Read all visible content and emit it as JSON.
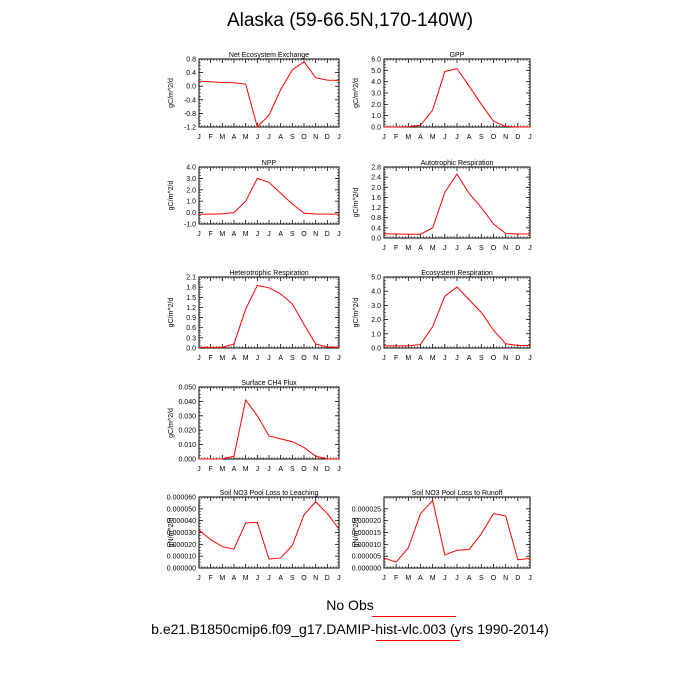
{
  "page_title": "Alaska (59-66.5N,170-140W)",
  "legend": {
    "obs_label": "No Obs",
    "case_label": "b.e21.B1850cmip6.f09_g17.DAMIP-hist-vlc.003 (yrs 1990-2014)",
    "line_color": "#ff0000"
  },
  "chart_data": [
    {
      "type": "line",
      "title": "Net Ecosystem Exchange",
      "ylabel": "gC/m^2/d",
      "x": [
        "J",
        "F",
        "M",
        "A",
        "M",
        "J",
        "J",
        "A",
        "S",
        "O",
        "N",
        "D",
        "J"
      ],
      "ylim": [
        -1.2,
        0.8
      ],
      "yticks": [
        "0.8",
        "0.4",
        "0.0",
        "-0.4",
        "-0.8",
        "-1.2"
      ],
      "series": [
        {
          "color": "#ff0000",
          "values": [
            0.15,
            0.13,
            0.11,
            0.1,
            0.06,
            -1.2,
            -0.85,
            -0.1,
            0.48,
            0.72,
            0.25,
            0.18,
            0.17
          ]
        }
      ]
    },
    {
      "type": "line",
      "title": "GPP",
      "ylabel": "gC/m^2/d",
      "x": [
        "J",
        "F",
        "M",
        "A",
        "M",
        "J",
        "J",
        "A",
        "S",
        "O",
        "N",
        "D",
        "J"
      ],
      "ylim": [
        0,
        6
      ],
      "yticks": [
        "6.0",
        "5.0",
        "4.0",
        "3.0",
        "2.0",
        "1.0",
        "0.0"
      ],
      "series": [
        {
          "color": "#ff0000",
          "values": [
            0.0,
            0.0,
            0.03,
            0.15,
            1.5,
            4.9,
            5.15,
            3.6,
            2.0,
            0.5,
            0.05,
            0.0,
            0.0
          ]
        }
      ]
    },
    {
      "type": "line",
      "title": "NPP",
      "ylabel": "gC/m^2/d",
      "x": [
        "J",
        "F",
        "M",
        "A",
        "M",
        "J",
        "J",
        "A",
        "S",
        "O",
        "N",
        "D",
        "J"
      ],
      "ylim": [
        -1,
        4
      ],
      "yticks": [
        "4.0",
        "3.0",
        "2.0",
        "1.0",
        "0.0",
        "-1.0"
      ],
      "series": [
        {
          "color": "#ff0000",
          "values": [
            -0.15,
            -0.13,
            -0.1,
            0.0,
            1.0,
            3.0,
            2.65,
            1.7,
            0.75,
            -0.05,
            -0.12,
            -0.13,
            -0.13
          ]
        }
      ]
    },
    {
      "type": "line",
      "title": "Autotrophic Respiration",
      "ylabel": "gC/m^2/d",
      "x": [
        "J",
        "F",
        "M",
        "A",
        "M",
        "J",
        "J",
        "A",
        "S",
        "O",
        "N",
        "D",
        "J"
      ],
      "ylim": [
        0,
        2.8
      ],
      "yticks": [
        "2.8",
        "2.4",
        "2.0",
        "1.6",
        "1.2",
        "0.8",
        "0.4",
        "0.0"
      ],
      "series": [
        {
          "color": "#ff0000",
          "values": [
            0.17,
            0.16,
            0.15,
            0.15,
            0.4,
            1.8,
            2.52,
            1.75,
            1.2,
            0.55,
            0.18,
            0.16,
            0.16
          ]
        }
      ]
    },
    {
      "type": "line",
      "title": "Heterotrophic Respiration",
      "ylabel": "gC/m^2/d",
      "x": [
        "J",
        "F",
        "M",
        "A",
        "M",
        "J",
        "J",
        "A",
        "S",
        "O",
        "N",
        "D",
        "J"
      ],
      "ylim": [
        0,
        2.1
      ],
      "yticks": [
        "2.1",
        "1.8",
        "1.5",
        "1.2",
        "0.9",
        "0.6",
        "0.3",
        "0.0"
      ],
      "series": [
        {
          "color": "#ff0000",
          "values": [
            0.02,
            0.02,
            0.02,
            0.12,
            1.15,
            1.85,
            1.78,
            1.6,
            1.3,
            0.7,
            0.12,
            0.03,
            0.02
          ]
        }
      ]
    },
    {
      "type": "line",
      "title": "Ecosystem Respiration",
      "ylabel": "gC/m^2/d",
      "x": [
        "J",
        "F",
        "M",
        "A",
        "M",
        "J",
        "J",
        "A",
        "S",
        "O",
        "N",
        "D",
        "J"
      ],
      "ylim": [
        0,
        5
      ],
      "yticks": [
        "5.0",
        "4.0",
        "3.0",
        "2.0",
        "1.0",
        "0.0"
      ],
      "series": [
        {
          "color": "#ff0000",
          "values": [
            0.15,
            0.15,
            0.15,
            0.25,
            1.5,
            3.65,
            4.3,
            3.4,
            2.5,
            1.25,
            0.3,
            0.18,
            0.18
          ]
        }
      ]
    },
    {
      "type": "line",
      "title": "Surface CH4 Flux",
      "ylabel": "gC/m^2/d",
      "x": [
        "J",
        "F",
        "M",
        "A",
        "M",
        "J",
        "J",
        "A",
        "S",
        "O",
        "N",
        "D",
        "J"
      ],
      "ylim": [
        0,
        0.05
      ],
      "yticks": [
        "0.050",
        "0.040",
        "0.030",
        "0.020",
        "0.010",
        "0.000"
      ],
      "series": [
        {
          "color": "#ff0000",
          "values": [
            0.0,
            0.0,
            0.0,
            0.002,
            0.041,
            0.03,
            0.016,
            0.014,
            0.012,
            0.008,
            0.002,
            0.0,
            0.0
          ]
        }
      ]
    },
    {
      "type": "line",
      "title": "Soil NO3 Pool Loss to Leaching",
      "ylabel": "gN/m^2/d",
      "x": [
        "J",
        "F",
        "M",
        "A",
        "M",
        "J",
        "J",
        "A",
        "S",
        "O",
        "N",
        "D",
        "J"
      ],
      "ylim": [
        0,
        6e-05
      ],
      "yticks": [
        "0.000060",
        "0.000050",
        "0.000040",
        "0.000030",
        "0.000020",
        "0.000010",
        "0.000000"
      ],
      "series": [
        {
          "color": "#ff0000",
          "values": [
            3.2e-05,
            2.4e-05,
            1.8e-05,
            1.6e-05,
            3.8e-05,
            3.85e-05,
            7.5e-06,
            8.5e-06,
            1.9e-05,
            4.5e-05,
            5.6e-05,
            4.6e-05,
            3.3e-05
          ]
        }
      ]
    },
    {
      "type": "line",
      "title": "Soil NO3 Pool Loss to Runoff",
      "ylabel": "gN/m^2/d",
      "x": [
        "J",
        "F",
        "M",
        "A",
        "M",
        "J",
        "J",
        "A",
        "S",
        "O",
        "N",
        "D",
        "J"
      ],
      "ylim": [
        0,
        3e-05
      ],
      "yticks": [
        "0.000025",
        "0.000020",
        "0.000015",
        "0.000010",
        "0.000005",
        "0.000000"
      ],
      "series": [
        {
          "color": "#ff0000",
          "values": [
            4.2e-06,
            2.5e-06,
            8.5e-06,
            2.3e-05,
            2.85e-05,
            5.5e-06,
            7.5e-06,
            7.8e-06,
            1.45e-05,
            2.3e-05,
            2.2e-05,
            3.5e-06,
            4e-06
          ]
        }
      ]
    }
  ]
}
